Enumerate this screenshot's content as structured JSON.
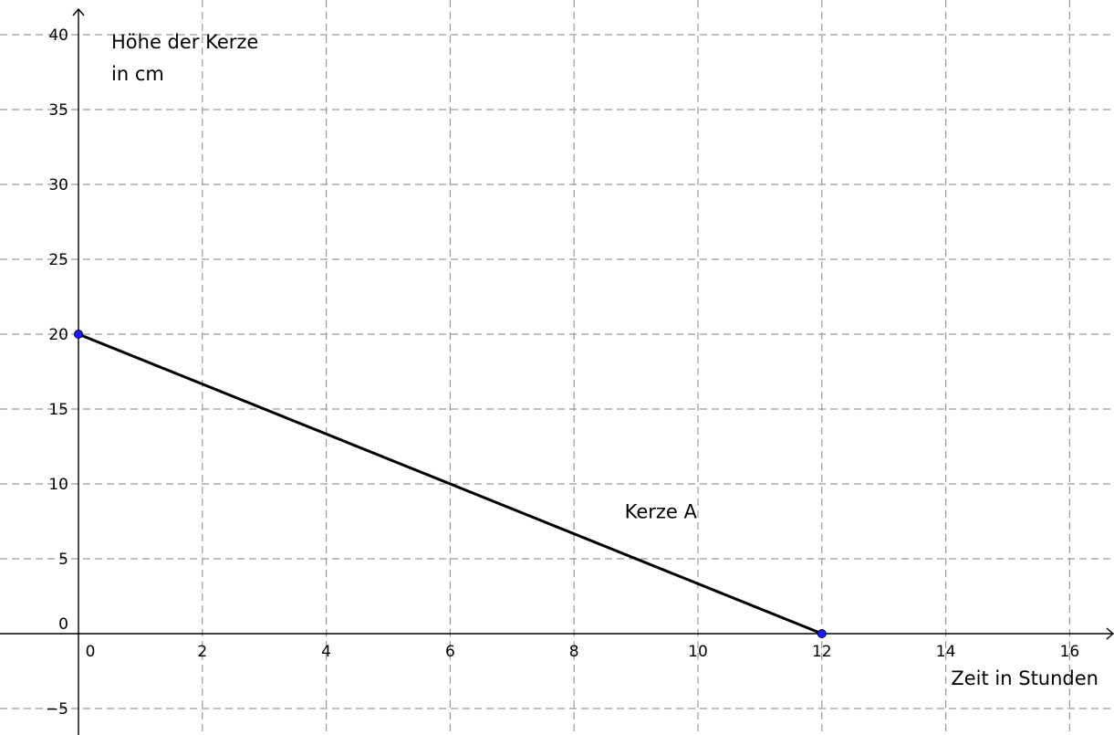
{
  "chart_data": {
    "type": "line",
    "title": "",
    "xlabel": "Zeit in Stunden",
    "ylabel_lines": [
      "Höhe der Kerze",
      "in cm"
    ],
    "xlim": [
      -0.2,
      16.7
    ],
    "ylim": [
      -6.5,
      41
    ],
    "x_ticks": [
      0,
      2,
      4,
      6,
      8,
      10,
      12,
      14,
      16
    ],
    "y_ticks": [
      -5,
      0,
      5,
      10,
      15,
      20,
      25,
      30,
      35,
      40
    ],
    "grid": true,
    "series": [
      {
        "name": "Kerze A",
        "x": [
          0,
          12
        ],
        "y": [
          20,
          0
        ],
        "color": "#000000",
        "marker_color": "#1a1aff"
      }
    ]
  }
}
